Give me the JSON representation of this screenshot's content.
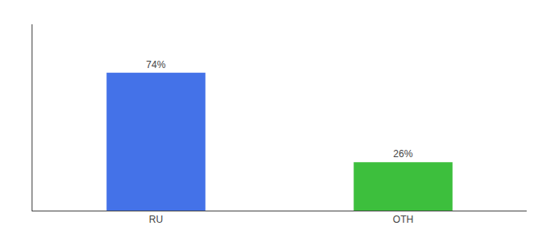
{
  "chart_data": {
    "type": "bar",
    "categories": [
      "RU",
      "OTH"
    ],
    "values": [
      74,
      26
    ],
    "colors": [
      "#4472e8",
      "#3dbf3d"
    ],
    "ylim": [
      0,
      100
    ],
    "data_labels": true,
    "value_labels": [
      "74%",
      "26%"
    ],
    "tick_labels": "x",
    "grid": false
  }
}
